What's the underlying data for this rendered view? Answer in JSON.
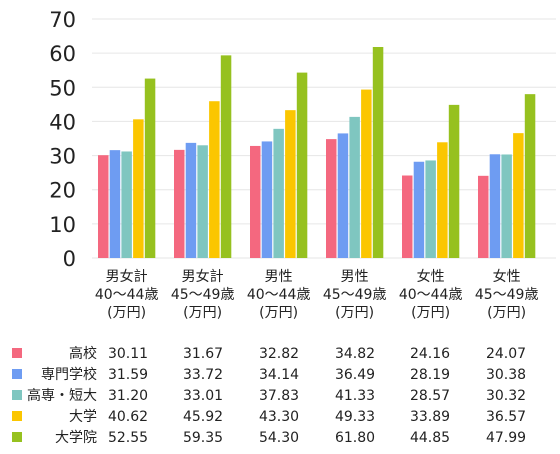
{
  "chart_data": {
    "type": "bar",
    "categories": [
      [
        "男女計",
        "40～44歳",
        "(万円)"
      ],
      [
        "男女計",
        "45～49歳",
        "(万円)"
      ],
      [
        "男性",
        "40～44歳",
        "(万円)"
      ],
      [
        "男性",
        "45～49歳",
        "(万円)"
      ],
      [
        "女性",
        "40～44歳",
        "(万円)"
      ],
      [
        "女性",
        "45～49歳",
        "(万円)"
      ]
    ],
    "series": [
      {
        "name": "高校",
        "color": "#f4687f",
        "values": [
          30.11,
          31.67,
          32.82,
          34.82,
          24.16,
          24.07
        ],
        "display": [
          "30.11",
          "31.67",
          "32.82",
          "34.82",
          "24.16",
          "24.07"
        ]
      },
      {
        "name": "専門学校",
        "color": "#6e9cf2",
        "values": [
          31.59,
          33.72,
          34.14,
          36.49,
          28.19,
          30.38
        ],
        "display": [
          "31.59",
          "33.72",
          "34.14",
          "36.49",
          "28.19",
          "30.38"
        ]
      },
      {
        "name": "高専・短大",
        "color": "#7fc6c0",
        "values": [
          31.2,
          33.01,
          37.83,
          41.33,
          28.57,
          30.32
        ],
        "display": [
          "31.20",
          "33.01",
          "37.83",
          "41.33",
          "28.57",
          "30.32"
        ]
      },
      {
        "name": "大学",
        "color": "#fbc600",
        "values": [
          40.62,
          45.92,
          43.3,
          49.33,
          33.89,
          36.57
        ],
        "display": [
          "40.62",
          "45.92",
          "43.30",
          "49.33",
          "33.89",
          "36.57"
        ]
      },
      {
        "name": "大学院",
        "color": "#96c11f",
        "values": [
          52.55,
          59.35,
          54.3,
          61.8,
          44.85,
          47.99
        ],
        "display": [
          "52.55",
          "59.35",
          "54.30",
          "61.80",
          "44.85",
          "47.99"
        ]
      }
    ],
    "yticks": [
      "0",
      "10",
      "20",
      "30",
      "40",
      "50",
      "60",
      "70"
    ],
    "ylim": [
      0,
      70
    ],
    "grid": true,
    "legend": "table-below"
  }
}
